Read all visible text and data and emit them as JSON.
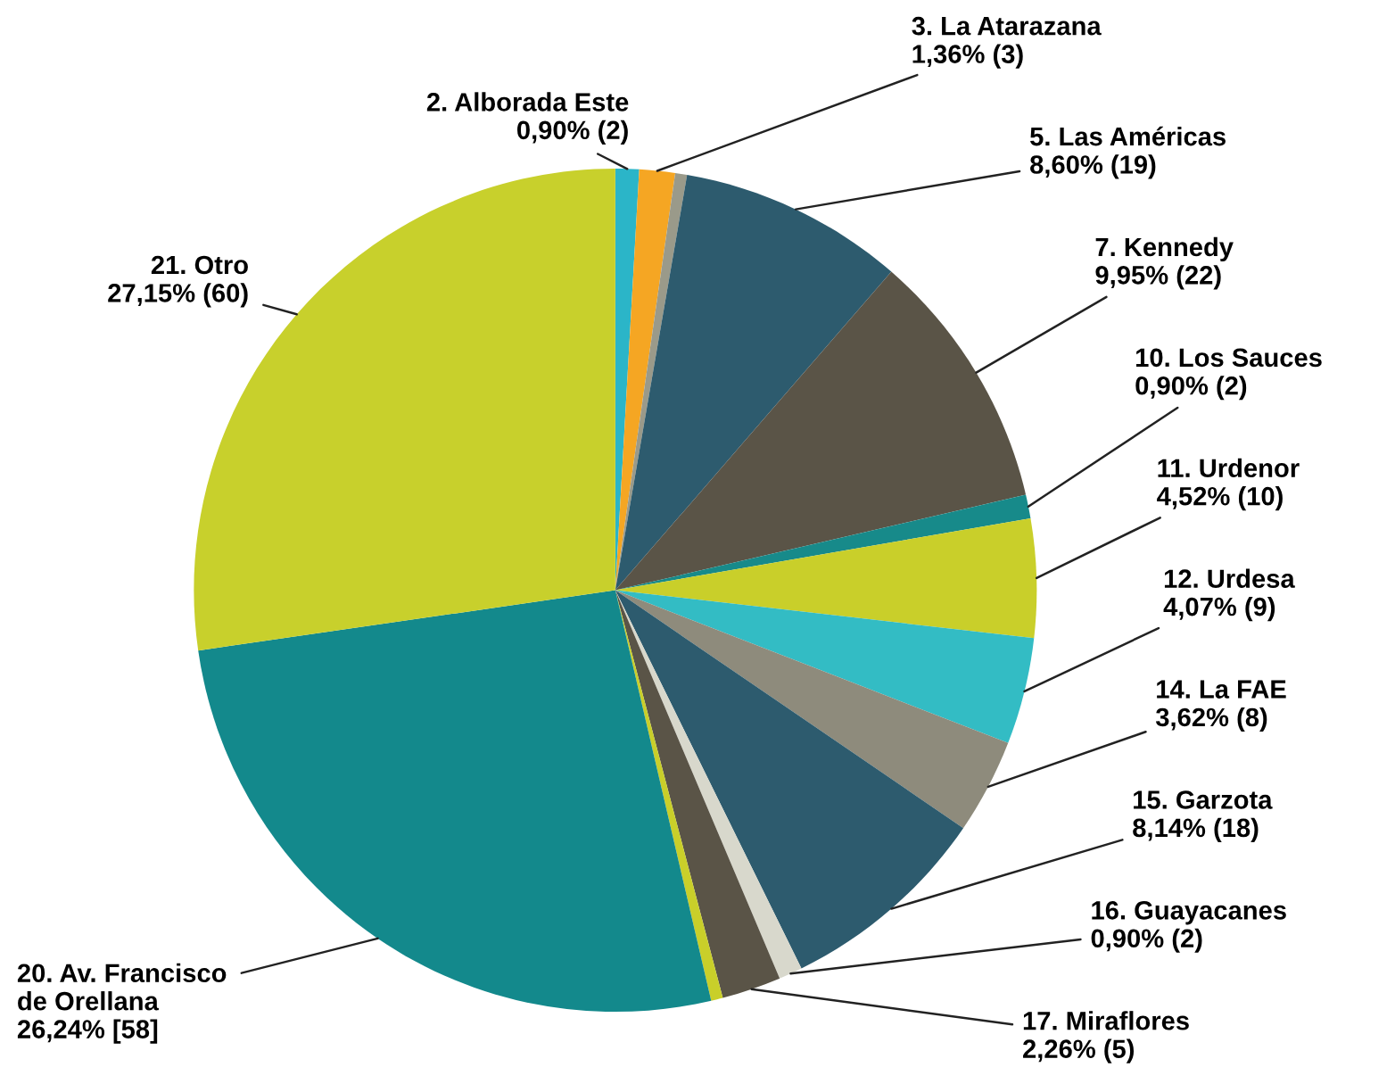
{
  "chart_data": {
    "type": "pie",
    "categories": [
      "2. Alborada Este",
      "3. La Atarazana",
      null,
      "5. Las Américas",
      "7. Kennedy",
      "10. Los Sauces",
      "11. Urdenor",
      "12. Urdesa",
      "14. La FAE",
      "15. Garzota",
      "16. Guayacanes",
      "17. Miraflores",
      null,
      "20. Av. Francisco\nde Orellana",
      "21. Otro"
    ],
    "values": [
      0.9,
      1.36,
      0.45,
      8.6,
      9.95,
      0.9,
      4.52,
      4.07,
      3.62,
      8.14,
      0.9,
      2.26,
      0.45,
      26.24,
      27.15
    ],
    "value_labels": [
      "0,90% (2)",
      "1,36% (3)",
      null,
      "8,60% (19)",
      "9,95% (22)",
      "0,90% (2)",
      "4,52% (10)",
      "4,07% (9)",
      "3,62% (8)",
      "8,14% (18)",
      "0,90% (2)",
      "2,26% (5)",
      null,
      "26,24% [58]",
      "27,15% (60)"
    ],
    "colors": [
      "#2bb5c8",
      "#f5a623",
      "#9a9a8a",
      "#2d5b6e",
      "#5a5447",
      "#178a8a",
      "#c9cf2a",
      "#33bcc4",
      "#8e8b7c",
      "#2d5b6e",
      "#d8d8cc",
      "#5a5447",
      "#c9cf2a",
      "#13898c",
      "#c8d02c"
    ],
    "legend": false
  }
}
